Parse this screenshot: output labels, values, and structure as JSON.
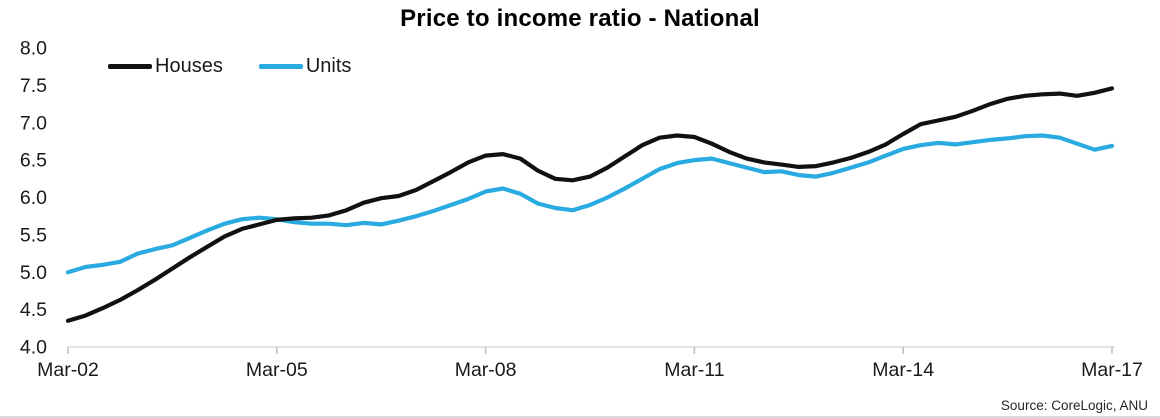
{
  "chart_data": {
    "type": "line",
    "title": "Price to income ratio - National",
    "source_note": "Source: CoreLogic, ANU",
    "legend_position": "top-left",
    "grid": false,
    "x": [
      "Mar-02",
      "Jun-02",
      "Sep-02",
      "Dec-02",
      "Mar-03",
      "Jun-03",
      "Sep-03",
      "Dec-03",
      "Mar-04",
      "Jun-04",
      "Sep-04",
      "Dec-04",
      "Mar-05",
      "Jun-05",
      "Sep-05",
      "Dec-05",
      "Mar-06",
      "Jun-06",
      "Sep-06",
      "Dec-06",
      "Mar-07",
      "Jun-07",
      "Sep-07",
      "Dec-07",
      "Mar-08",
      "Jun-08",
      "Sep-08",
      "Dec-08",
      "Mar-09",
      "Jun-09",
      "Sep-09",
      "Dec-09",
      "Mar-10",
      "Jun-10",
      "Sep-10",
      "Dec-10",
      "Mar-11",
      "Jun-11",
      "Sep-11",
      "Dec-11",
      "Mar-12",
      "Jun-12",
      "Sep-12",
      "Dec-12",
      "Mar-13",
      "Jun-13",
      "Sep-13",
      "Dec-13",
      "Mar-14",
      "Jun-14",
      "Sep-14",
      "Dec-14",
      "Mar-15",
      "Jun-15",
      "Sep-15",
      "Dec-15",
      "Mar-16",
      "Jun-16",
      "Sep-16",
      "Dec-16",
      "Mar-17"
    ],
    "series": [
      {
        "name": "Houses",
        "color": "#111111",
        "values": [
          4.35,
          4.42,
          4.52,
          4.63,
          4.76,
          4.9,
          5.05,
          5.2,
          5.34,
          5.48,
          5.58,
          5.64,
          5.7,
          5.72,
          5.73,
          5.76,
          5.83,
          5.93,
          5.99,
          6.02,
          6.1,
          6.22,
          6.34,
          6.47,
          6.56,
          6.58,
          6.52,
          6.36,
          6.25,
          6.23,
          6.28,
          6.4,
          6.55,
          6.7,
          6.8,
          6.83,
          6.81,
          6.72,
          6.61,
          6.52,
          6.47,
          6.44,
          6.41,
          6.42,
          6.47,
          6.53,
          6.61,
          6.71,
          6.85,
          6.98,
          7.03,
          7.08,
          7.16,
          7.25,
          7.32,
          7.36,
          7.38,
          7.39,
          7.36,
          7.4,
          7.46
        ]
      },
      {
        "name": "Units",
        "color": "#29abe2",
        "values": [
          5.0,
          5.07,
          5.1,
          5.14,
          5.25,
          5.31,
          5.36,
          5.46,
          5.56,
          5.65,
          5.71,
          5.73,
          5.71,
          5.67,
          5.65,
          5.65,
          5.63,
          5.66,
          5.64,
          5.69,
          5.75,
          5.82,
          5.9,
          5.98,
          6.08,
          6.12,
          6.05,
          5.92,
          5.86,
          5.83,
          5.9,
          6.0,
          6.12,
          6.25,
          6.38,
          6.46,
          6.5,
          6.52,
          6.46,
          6.4,
          6.34,
          6.35,
          6.3,
          6.28,
          6.33,
          6.4,
          6.47,
          6.56,
          6.65,
          6.7,
          6.73,
          6.71,
          6.74,
          6.77,
          6.79,
          6.82,
          6.83,
          6.8,
          6.72,
          6.64,
          6.69
        ]
      }
    ],
    "y_axis": {
      "min": 4.0,
      "max": 8.0,
      "tick_step": 0.5,
      "tick_labels": [
        "4.0",
        "4.5",
        "5.0",
        "5.5",
        "6.0",
        "6.5",
        "7.0",
        "7.5",
        "8.0"
      ]
    },
    "x_axis": {
      "tick_labels": [
        "Mar-02",
        "Mar-05",
        "Mar-08",
        "Mar-11",
        "Mar-14",
        "Mar-17"
      ],
      "tick_indices": [
        0,
        12,
        24,
        36,
        48,
        60
      ]
    },
    "axis_color": "#d9d9d9",
    "tick_color": "#bfbfbf",
    "label_color": "#1a1a1a"
  }
}
